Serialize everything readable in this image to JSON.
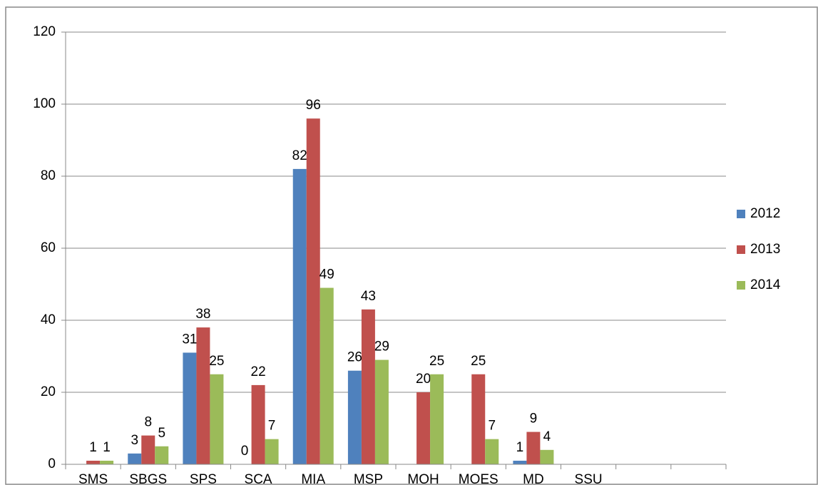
{
  "chart_data": {
    "type": "bar",
    "categories": [
      "SMS",
      "SBGS",
      "SPS",
      "SCA",
      "MIA",
      "MSP",
      "MOH",
      "MOES",
      "MD",
      "SSU",
      null,
      null
    ],
    "series": [
      {
        "name": "2012",
        "color": "#4f81bd",
        "values": [
          null,
          3,
          31,
          0,
          82,
          26,
          null,
          null,
          1,
          null,
          null,
          null
        ]
      },
      {
        "name": "2013",
        "color": "#c0504d",
        "values": [
          1,
          8,
          38,
          22,
          96,
          43,
          20,
          25,
          9,
          null,
          null,
          null
        ]
      },
      {
        "name": "2014",
        "color": "#9bbb59",
        "values": [
          1,
          5,
          25,
          7,
          49,
          29,
          25,
          7,
          4,
          null,
          null,
          null
        ]
      }
    ],
    "ylim": [
      0,
      120
    ],
    "yticks": [
      0,
      20,
      40,
      60,
      80,
      100,
      120
    ],
    "grid": true,
    "legend": "right"
  }
}
